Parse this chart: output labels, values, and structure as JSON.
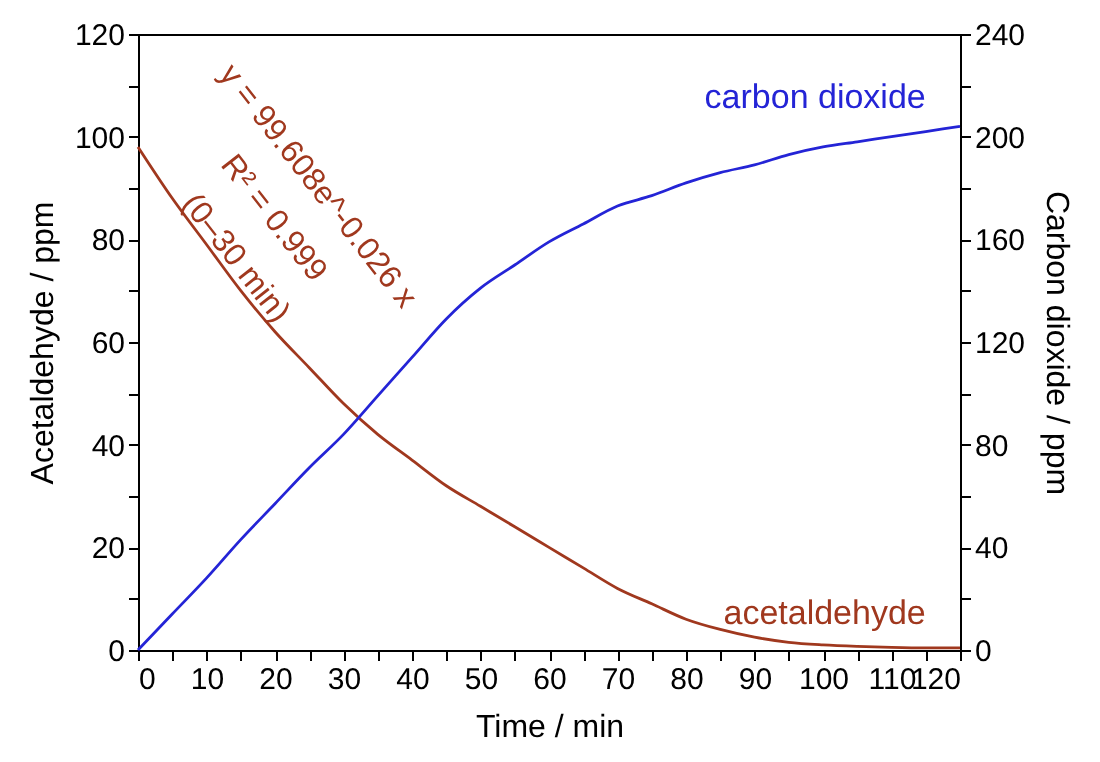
{
  "chart_data": {
    "type": "line",
    "xlabel": "Time / min",
    "ylabel": "Acetaldehyde / ppm",
    "y2label": "Carbon dioxide / ppm",
    "x": [
      0,
      5,
      10,
      15,
      20,
      25,
      30,
      35,
      40,
      45,
      50,
      55,
      60,
      65,
      70,
      75,
      80,
      85,
      90,
      95,
      100,
      105,
      110,
      115,
      120
    ],
    "series": [
      {
        "name": "acetaldehyde",
        "color": "#a0381e",
        "values": [
          98,
          88,
          79,
          70,
          62,
          55,
          48,
          42,
          37,
          32,
          28,
          24,
          20,
          16,
          12,
          9,
          6,
          4,
          2.5,
          1.5,
          1,
          0.7,
          0.5,
          0.4,
          0.4
        ]
      },
      {
        "name": "carbon dioxide",
        "color": "#2424d6",
        "axis": "y2",
        "values": [
          0,
          14,
          28,
          43,
          57,
          71,
          84,
          99,
          114,
          129,
          141,
          150,
          159,
          166,
          173,
          177,
          182,
          186,
          189,
          193,
          196,
          198,
          200,
          202,
          204
        ]
      }
    ],
    "annotations": [
      "y = 99.608e^-0.026 x",
      "R² = 0.999",
      "(0–30 min)"
    ],
    "xlim": [
      0,
      120
    ],
    "ylim": [
      0,
      120
    ],
    "y2lim": [
      0,
      240
    ],
    "xticks": [
      0,
      {
        "value": 5,
        "label": null
      },
      10,
      {
        "value": 15,
        "label": null
      },
      20,
      {
        "value": 25,
        "label": null
      },
      30,
      {
        "value": 35,
        "label": null
      },
      40,
      {
        "value": 45,
        "label": null
      },
      50,
      {
        "value": 55,
        "label": null
      },
      60,
      {
        "value": 65,
        "label": null
      },
      70,
      {
        "value": 75,
        "label": null
      },
      80,
      {
        "value": 85,
        "label": null
      },
      90,
      {
        "value": 95,
        "label": null
      },
      100,
      {
        "value": 105,
        "label": null
      },
      110,
      {
        "value": 115,
        "label": null
      },
      120
    ],
    "yticks": [
      0,
      {
        "value": 10,
        "label": null
      },
      20,
      {
        "value": 30,
        "label": null
      },
      40,
      {
        "value": 50,
        "label": null
      },
      60,
      {
        "value": 70,
        "label": null
      },
      80,
      {
        "value": 90,
        "label": null
      },
      100,
      {
        "value": 110,
        "label": null
      },
      120
    ],
    "y2ticks": [
      0,
      {
        "value": 20,
        "label": null
      },
      40,
      {
        "value": 60,
        "label": null
      },
      80,
      {
        "value": 100,
        "label": null
      },
      120,
      {
        "value": 140,
        "label": null
      },
      160,
      {
        "value": 180,
        "label": null
      },
      200,
      {
        "value": 220,
        "label": null
      },
      240
    ],
    "grid": false,
    "marker": "none",
    "line_style": "solid"
  }
}
